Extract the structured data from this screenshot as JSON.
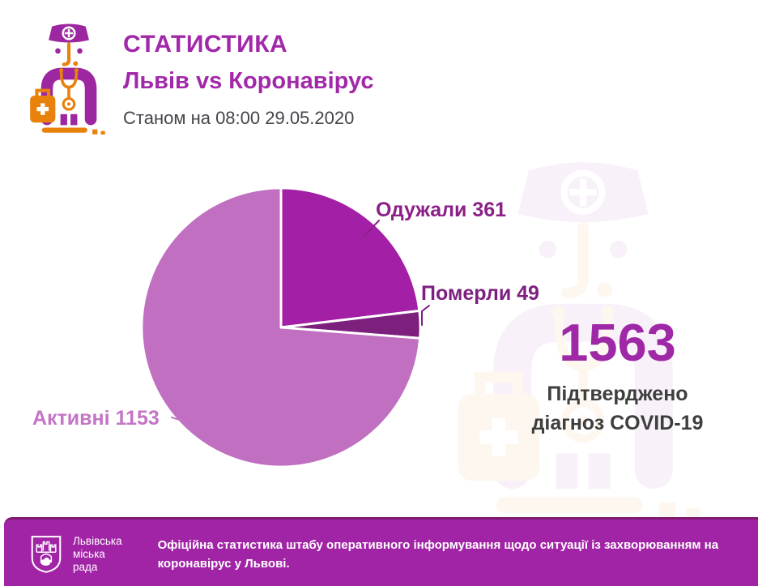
{
  "header": {
    "title": "СТАТИСТИКА",
    "subtitle": "Львів vs Коронавірус",
    "as_of": "Станом на 08:00 29.05.2020"
  },
  "chart_data": {
    "type": "pie",
    "total": 1563,
    "start_at": "12-oclock",
    "direction": "clockwise",
    "slices": [
      {
        "key": "recovered",
        "label": "Одужали",
        "value": 361,
        "display": "Одужали 361",
        "color": "#a21fa6",
        "label_color": "#8c2088"
      },
      {
        "key": "deceased",
        "label": "Померли",
        "value": 49,
        "display": "Померли 49",
        "color": "#7d1f7d",
        "label_color": "#7d1f80"
      },
      {
        "key": "active",
        "label": "Активні",
        "value": 1153,
        "display": "Активні 1153",
        "color": "#c06fc1",
        "label_color": "#c475c5"
      }
    ]
  },
  "summary": {
    "total": "1563",
    "caption": [
      "Підтверджено",
      "діагноз COVID-19"
    ]
  },
  "footer": {
    "org": [
      "Львівська",
      "міська",
      "рада"
    ],
    "note": [
      "Офіційна статистика штабу оперативного інформування щодо ситуації із захворюванням на",
      "коронавірус у Львові."
    ]
  },
  "colors": {
    "accent": "#a228aa",
    "accent_dark": "#8c2088",
    "text_dark": "#44454b",
    "total_color": "#9e28a6",
    "footer_bg": "#a124a6",
    "footer_border": "#7e1b70",
    "icon_purple": "#9c27a0",
    "icon_orange": "#e8820c"
  }
}
